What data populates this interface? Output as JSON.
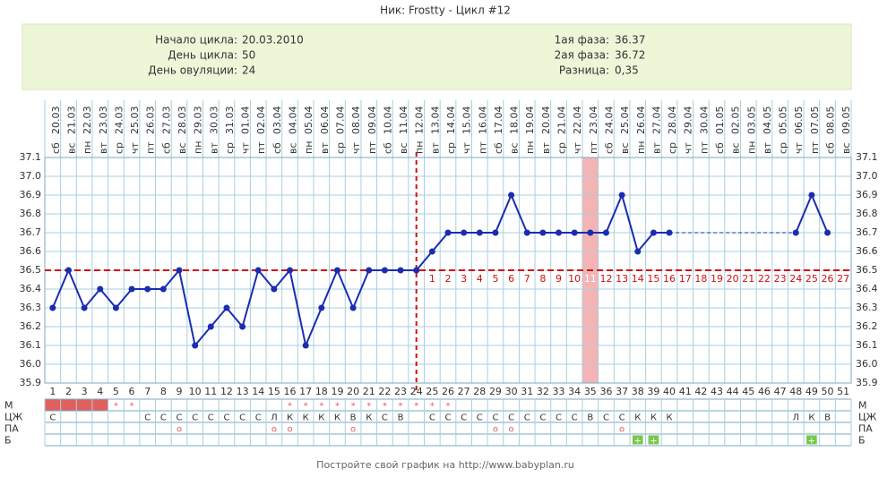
{
  "chart_data": {
    "type": "line",
    "title": "Ник: Frostty - Цикл #12",
    "info_left": [
      {
        "label": "Начало цикла:",
        "value": "20.03.2010"
      },
      {
        "label": "День цикла:",
        "value": "50"
      },
      {
        "label": "День овуляции:",
        "value": "24"
      }
    ],
    "info_right": [
      {
        "label": "1ая фаза:",
        "value": "36.37"
      },
      {
        "label": "2ая фаза:",
        "value": "36.72"
      },
      {
        "label": "Разница:",
        "value": "0,35"
      }
    ],
    "categories": [
      "20.03",
      "21.03",
      "22.03",
      "23.03",
      "24.03",
      "25.03",
      "26.03",
      "27.03",
      "28.03",
      "29.03",
      "30.03",
      "31.03",
      "01.04",
      "02.04",
      "03.04",
      "04.04",
      "05.04",
      "06.04",
      "07.04",
      "08.04",
      "09.04",
      "10.04",
      "11.04",
      "12.04",
      "13.04",
      "14.04",
      "15.04",
      "16.04",
      "17.04",
      "18.04",
      "19.04",
      "20.04",
      "21.04",
      "22.04",
      "23.04",
      "24.04",
      "25.04",
      "26.04",
      "27.04",
      "28.04",
      "29.04",
      "30.04",
      "01.05",
      "02.05",
      "03.05",
      "04.05",
      "05.05",
      "06.05",
      "07.05",
      "08.05",
      "09.05"
    ],
    "weekdays": [
      "сб",
      "вс",
      "пн",
      "вт",
      "ср",
      "чт",
      "пт",
      "сб",
      "вс",
      "пн",
      "вт",
      "ср",
      "чт",
      "пт",
      "сб",
      "вс",
      "пн",
      "вт",
      "ср",
      "чт",
      "пт",
      "сб",
      "вс",
      "пн",
      "вт",
      "ср",
      "чт",
      "пт",
      "сб",
      "вс",
      "пн",
      "вт",
      "ср",
      "чт",
      "пт",
      "сб",
      "вс",
      "пн",
      "вт",
      "ср",
      "чт",
      "пт",
      "сб",
      "вс",
      "пн",
      "вт",
      "ср",
      "чт",
      "пт",
      "сб",
      "вс"
    ],
    "days": [
      1,
      2,
      3,
      4,
      5,
      6,
      7,
      8,
      9,
      10,
      11,
      12,
      13,
      14,
      15,
      16,
      17,
      18,
      19,
      20,
      21,
      22,
      23,
      24,
      25,
      26,
      27,
      28,
      29,
      30,
      31,
      32,
      33,
      34,
      35,
      36,
      37,
      38,
      39,
      40,
      41,
      42,
      43,
      44,
      45,
      46,
      47,
      48,
      49,
      50,
      51
    ],
    "series": [
      {
        "color": "#1a2db0",
        "values": [
          36.3,
          36.5,
          36.3,
          36.4,
          36.3,
          36.4,
          36.4,
          36.4,
          36.5,
          36.1,
          36.2,
          36.3,
          36.2,
          36.5,
          36.4,
          36.5,
          36.1,
          36.3,
          36.5,
          36.3,
          36.5,
          36.5,
          36.5,
          36.5,
          36.6,
          36.7,
          36.7,
          36.7,
          36.7,
          36.9,
          36.7,
          36.7,
          36.7,
          36.7,
          36.7,
          36.7,
          36.9,
          36.6,
          36.7,
          36.7,
          null,
          null,
          null,
          null,
          null,
          null,
          null,
          36.7,
          36.9,
          36.7,
          null
        ]
      }
    ],
    "ylim": [
      35.9,
      37.1
    ],
    "yticks": [
      35.9,
      {
        "value": 36,
        "label": "36.0"
      },
      36.1,
      36.2,
      36.3,
      36.4,
      36.5,
      36.6,
      36.7,
      36.8,
      36.9,
      {
        "value": 37,
        "label": "37.0"
      },
      37.1
    ],
    "grid": true,
    "coverline": 36.5,
    "ovulation_day": 24,
    "highlight_day": 35,
    "line_color": "#d01010",
    "phase_days": [
      null,
      null,
      null,
      null,
      null,
      null,
      null,
      null,
      null,
      null,
      null,
      null,
      null,
      null,
      null,
      null,
      null,
      null,
      null,
      null,
      null,
      null,
      null,
      null,
      1,
      2,
      3,
      4,
      5,
      6,
      7,
      8,
      9,
      10,
      11,
      12,
      13,
      14,
      15,
      16,
      17,
      18,
      19,
      20,
      21,
      22,
      23,
      24,
      25,
      26,
      27
    ],
    "rows": [
      {
        "label": "М",
        "color": "#e06060",
        "filled_days": [
          1,
          2,
          3,
          4
        ],
        "values": [
          null,
          null,
          null,
          null,
          "*",
          "*",
          null,
          null,
          null,
          null,
          null,
          null,
          null,
          null,
          null,
          "*",
          "*",
          "*",
          "*",
          "*",
          "*",
          "*",
          "*",
          "*",
          "*",
          "*",
          null,
          null,
          null,
          null,
          null,
          null,
          null,
          null,
          null,
          null,
          null,
          null,
          null,
          null,
          null,
          null,
          null,
          null,
          null,
          null,
          null,
          null,
          null,
          null,
          null
        ]
      },
      {
        "label": "ЦЖ",
        "color": "#333333",
        "values": [
          "С",
          null,
          null,
          null,
          null,
          null,
          "С",
          "С",
          "С",
          "С",
          "С",
          "С",
          "С",
          "С",
          "Л",
          "К",
          "К",
          "К",
          "К",
          "В",
          "К",
          "С",
          "В",
          null,
          "С",
          "С",
          "С",
          "С",
          "С",
          "С",
          "С",
          "С",
          "С",
          "С",
          "В",
          "С",
          "С",
          "К",
          "К",
          "К",
          null,
          null,
          null,
          null,
          null,
          null,
          null,
          "Л",
          "К",
          "В",
          null
        ]
      },
      {
        "label": "ПА",
        "color": "#e06060",
        "values": [
          null,
          null,
          null,
          null,
          null,
          null,
          null,
          null,
          "о",
          null,
          null,
          null,
          null,
          null,
          "о",
          "о",
          null,
          null,
          null,
          "о",
          null,
          null,
          null,
          null,
          null,
          null,
          null,
          null,
          "о",
          "о",
          null,
          null,
          null,
          null,
          null,
          null,
          "о",
          null,
          null,
          null,
          null,
          null,
          null,
          null,
          null,
          null,
          null,
          null,
          null,
          null,
          null
        ]
      },
      {
        "label": "Б",
        "color": "#ffffff",
        "cell_color": "#78c848",
        "values": [
          null,
          null,
          null,
          null,
          null,
          null,
          null,
          null,
          null,
          null,
          null,
          null,
          null,
          null,
          null,
          null,
          null,
          null,
          null,
          null,
          null,
          null,
          null,
          null,
          null,
          null,
          null,
          null,
          null,
          null,
          null,
          null,
          null,
          null,
          null,
          null,
          null,
          "+",
          "+",
          null,
          null,
          null,
          null,
          null,
          null,
          null,
          null,
          null,
          "+",
          null,
          null
        ]
      }
    ],
    "footer": "Постройте свой график на http://www.babyplan.ru"
  }
}
